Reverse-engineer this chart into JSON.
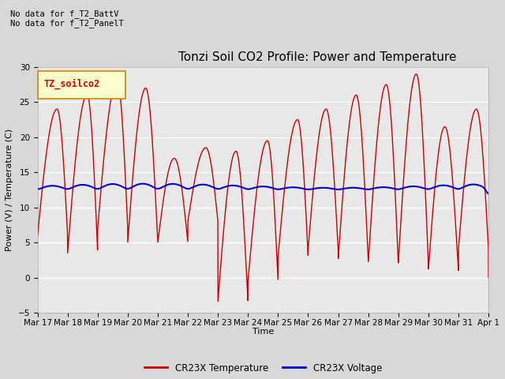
{
  "title": "Tonzi Soil CO2 Profile: Power and Temperature",
  "ylabel": "Power (V) / Temperature (C)",
  "xlabel": "Time",
  "annotations": [
    "No data for f_T2_BattV",
    "No data for f_T2_PanelT"
  ],
  "legend_label_box": "TZ_soilco2",
  "legend_label_temp": "CR23X Temperature",
  "legend_label_volt": "CR23X Voltage",
  "ylim": [
    -5,
    30
  ],
  "yticks": [
    -5,
    0,
    5,
    10,
    15,
    20,
    25,
    30
  ],
  "xtick_labels": [
    "Mar 17",
    "Mar 18",
    "Mar 19",
    "Mar 20",
    "Mar 21",
    "Mar 22",
    "Mar 23",
    "Mar 24",
    "Mar 25",
    "Mar 26",
    "Mar 27",
    "Mar 28",
    "Mar 29",
    "Mar 30",
    "Mar 31",
    "Apr 1"
  ],
  "bg_color": "#d8d8d8",
  "plot_bg_color": "#e8e8e8",
  "temp_color": "#cc0000",
  "volt_color": "#0000cc",
  "title_fontsize": 11,
  "axis_fontsize": 8,
  "tick_fontsize": 7.5
}
